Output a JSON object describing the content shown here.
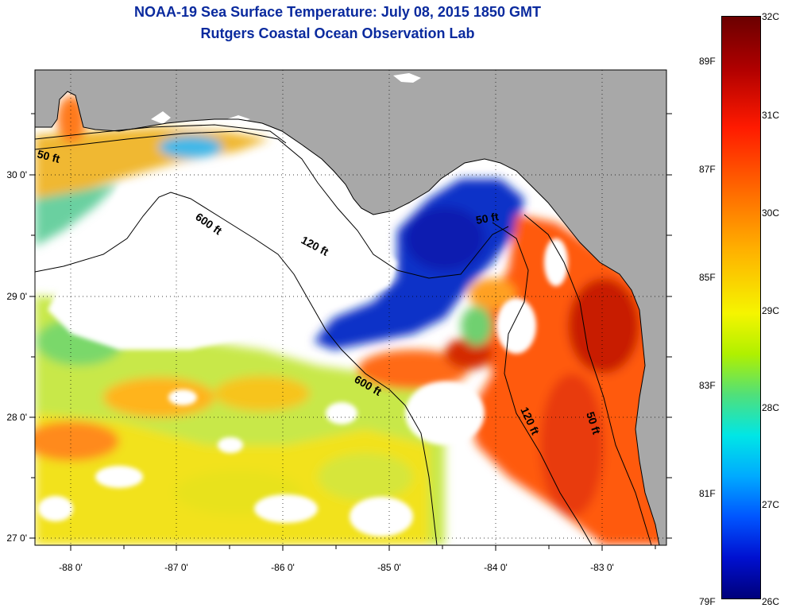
{
  "title": {
    "line1": "NOAA-19 Sea Surface Temperature:  July 08, 2015 1850 GMT",
    "line2": "Rutgers Coastal Ocean Observation Lab"
  },
  "axes": {
    "lon_labels": [
      "-88 0'",
      "-87 0'",
      "-86 0'",
      "-85 0'",
      "-84 0'",
      "-83 0'"
    ],
    "lat_labels": [
      "30 0'",
      "29 0'",
      "28 0'",
      "27 0'"
    ]
  },
  "contours": {
    "c600": "600 ft",
    "c120": "120 ft",
    "c50_nw": "50 ft",
    "c50_e": "50 ft",
    "c120_e": "120 ft",
    "c600_s": "600 ft",
    "c50_bigbend": "50 ft"
  },
  "colorbar": {
    "celsius": [
      "32C",
      "31C",
      "30C",
      "29C",
      "28C",
      "27C",
      "26C"
    ],
    "fahrenheit": [
      "89F",
      "87F",
      "85F",
      "83F",
      "81F",
      "79F"
    ]
  },
  "colors": {
    "title": "#0a2a9e",
    "land": "#a8a8a8",
    "nodata": "#ffffff"
  }
}
